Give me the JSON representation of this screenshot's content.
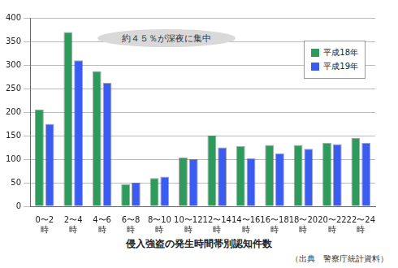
{
  "chart_data": {
    "type": "bar",
    "title": "侵入強盗の発生時間帯別認知件数",
    "subtitle": "（出典　警察庁統計資料）",
    "annotation": "約４５％が深夜に集中",
    "categories": [
      "0〜2時",
      "2〜4時",
      "4〜6時",
      "6〜8時",
      "8〜10時",
      "10〜12時",
      "12〜14時",
      "14〜16時",
      "16〜18時",
      "18〜20時",
      "20〜22時",
      "22〜24時"
    ],
    "series": [
      {
        "name": "平成18年",
        "color": "#2e9a5c",
        "values": [
          205,
          370,
          287,
          47,
          60,
          104,
          150,
          128,
          130,
          130,
          135,
          145
        ]
      },
      {
        "name": "平成19年",
        "color": "#3a5cf0",
        "values": [
          175,
          310,
          262,
          50,
          63,
          100,
          125,
          102,
          112,
          122,
          132,
          135
        ]
      }
    ],
    "ylim": [
      0,
      400
    ],
    "yticks": [
      0,
      50,
      100,
      150,
      200,
      250,
      300,
      350,
      400
    ],
    "grid": true,
    "legend": "upper right"
  }
}
